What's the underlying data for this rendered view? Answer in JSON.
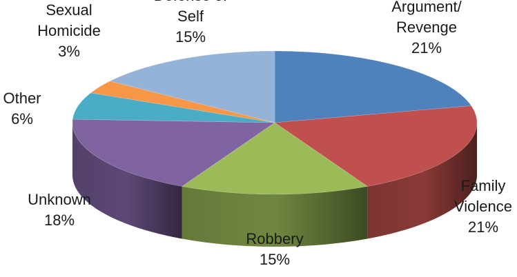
{
  "chart_data": {
    "type": "pie",
    "style": "3d",
    "title": "",
    "slices": [
      {
        "name": "Argument/ Revenge",
        "label_lines": [
          "Argument/",
          "Revenge"
        ],
        "value": 21,
        "value_label": "21%",
        "color": "#4f81bd"
      },
      {
        "name": "Family Violence",
        "label_lines": [
          "Family",
          "Violence"
        ],
        "value": 21,
        "value_label": "21%",
        "color": "#c0504d"
      },
      {
        "name": "Robbery",
        "label_lines": [
          "Robbery"
        ],
        "value": 15,
        "value_label": "15%",
        "color": "#9bbb59"
      },
      {
        "name": "Unknown",
        "label_lines": [
          "Unknown"
        ],
        "value": 18,
        "value_label": "18%",
        "color": "#8064a2"
      },
      {
        "name": "Other",
        "label_lines": [
          "Other"
        ],
        "value": 6,
        "value_label": "6%",
        "color": "#4bacc6"
      },
      {
        "name": "Sexual Homicide",
        "label_lines": [
          "Sexual",
          "Homicide"
        ],
        "value": 3,
        "value_label": "3%",
        "color": "#f79646"
      },
      {
        "name": "Defense of Self",
        "label_lines": [
          "Defense of",
          "Self"
        ],
        "value": 15,
        "value_label": "15%",
        "color": "#95b3d7"
      }
    ],
    "start_angle": "12 o'clock",
    "direction": "clockwise",
    "legend": "none",
    "data_labels": "outside"
  }
}
